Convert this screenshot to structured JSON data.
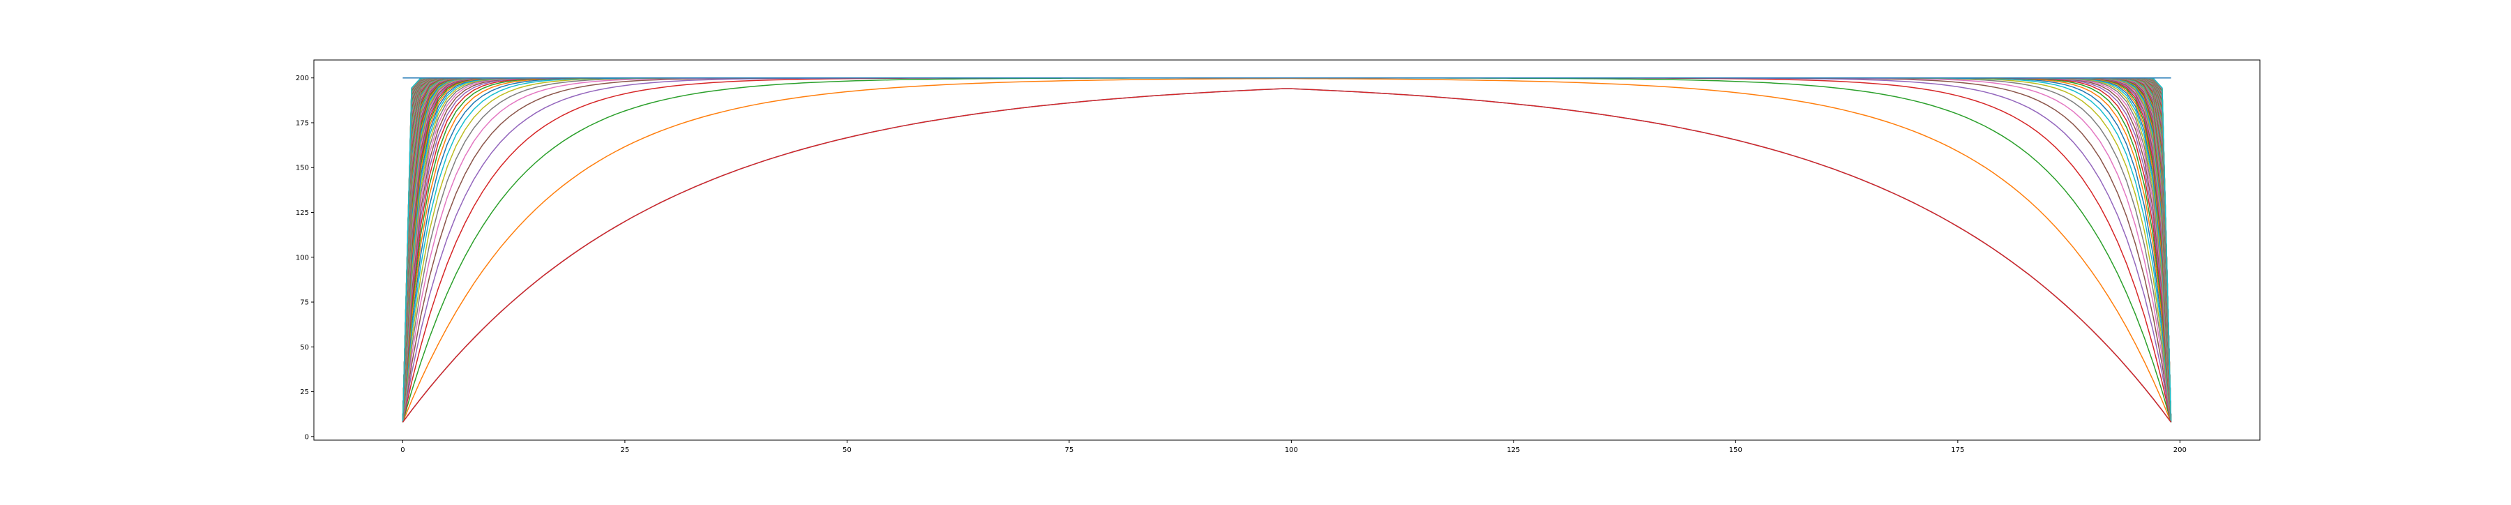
{
  "chart_data": {
    "type": "line",
    "title": "",
    "xlabel": "",
    "ylabel": "",
    "xlim": [
      -10,
      209
    ],
    "ylim": [
      -2,
      210
    ],
    "x_ticks": [
      0,
      25,
      50,
      75,
      100,
      125,
      150,
      175,
      200
    ],
    "x_tick_labels": [
      "0",
      "25",
      "50",
      "75",
      "100",
      "125",
      "150",
      "175",
      "200"
    ],
    "y_ticks": [
      0,
      25,
      50,
      75,
      100,
      125,
      150,
      175,
      200
    ],
    "y_tick_labels": [
      "0",
      "25",
      "50",
      "75",
      "100",
      "125",
      "150",
      "175",
      "200"
    ],
    "grid": false,
    "legend": "none",
    "x_range": [
      0,
      199
    ],
    "plateau_value": 200,
    "endpoint_value": 8,
    "series_count": 120,
    "envelope_series": {
      "name": "",
      "x": [
        0,
        10,
        20,
        30,
        40,
        50,
        60,
        70,
        80,
        90,
        100,
        110,
        120,
        130,
        140,
        150,
        160,
        170,
        180,
        190,
        199
      ],
      "values": [
        8,
        76,
        124,
        158,
        179,
        191,
        197,
        200,
        200,
        200,
        200,
        200,
        200,
        200,
        200,
        197,
        191,
        179,
        158,
        110,
        8
      ]
    },
    "colors": [
      "#1f77b4",
      "#ff7f0e",
      "#2ca02c",
      "#d62728",
      "#9467bd",
      "#8c564b",
      "#e377c2",
      "#7f7f7f",
      "#bcbd22",
      "#17becf"
    ]
  }
}
